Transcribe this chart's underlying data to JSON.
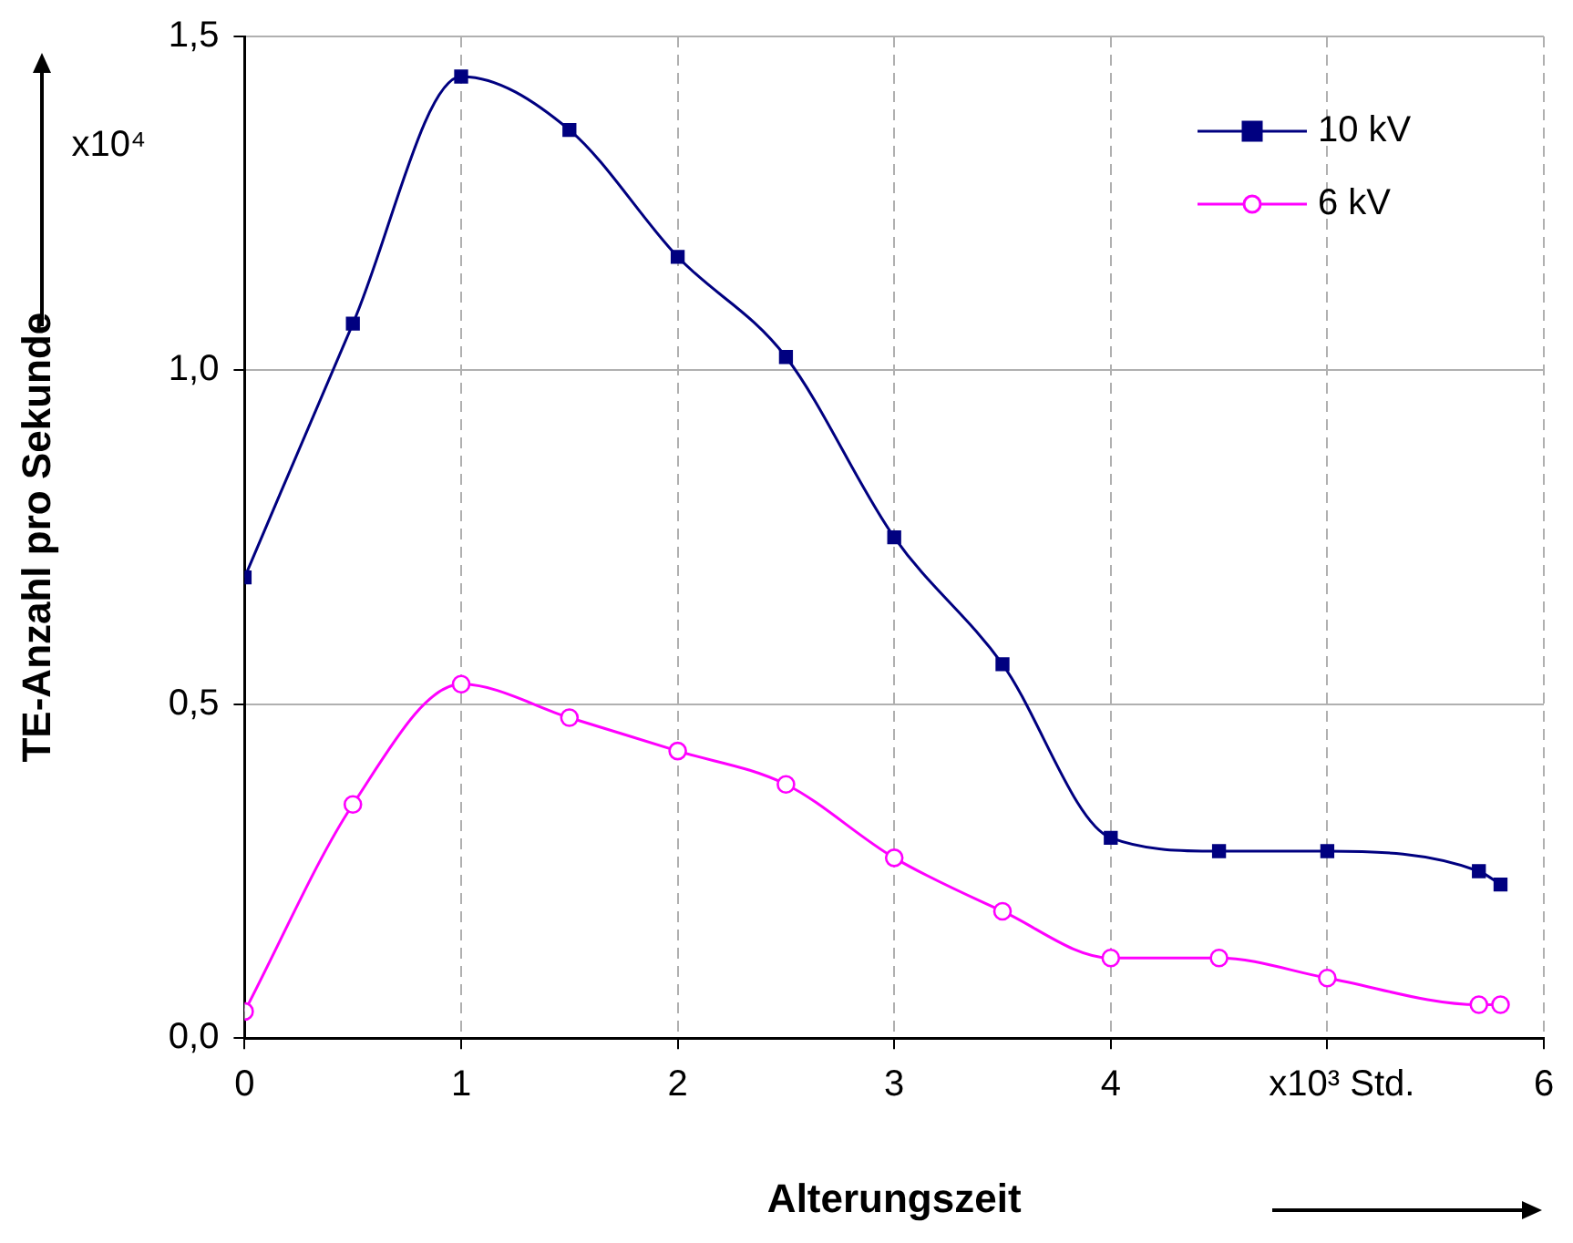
{
  "chart_data": {
    "type": "line",
    "ylabel": "TE-Anzahl pro Sekunde",
    "xlabel": "Alterungszeit",
    "x": [
      0,
      0.5,
      1,
      1.5,
      2,
      2.5,
      3,
      3.5,
      4,
      4.5,
      5,
      5.7,
      5.8
    ],
    "series": [
      {
        "name": "10 kV",
        "color": "#000080",
        "marker": "square",
        "values": [
          0.69,
          1.07,
          1.44,
          1.36,
          1.17,
          1.02,
          0.75,
          0.56,
          0.3,
          0.28,
          0.28,
          0.25,
          0.23
        ]
      },
      {
        "name": "6 kV",
        "color": "#ff00ff",
        "marker": "circle",
        "values": [
          0.04,
          0.35,
          0.53,
          0.48,
          0.43,
          0.38,
          0.27,
          0.19,
          0.12,
          0.12,
          0.09,
          0.05,
          0.05
        ]
      }
    ],
    "xlim": [
      0,
      6
    ],
    "xticks": [
      0,
      1,
      2,
      3,
      4,
      {
        "value": 5,
        "label": null
      },
      6
    ],
    "ylim": [
      0,
      1.5
    ],
    "yticks": [
      {
        "value": 0,
        "label": "0,0"
      },
      {
        "value": 0.5,
        "label": "0,5"
      },
      {
        "value": 1,
        "label": "1,0"
      },
      {
        "value": 1.5,
        "label": "1,5"
      }
    ],
    "annotations": [
      "x10⁴",
      "x10³ Std."
    ],
    "grid": true,
    "legend": "top right",
    "line_style": "solid"
  }
}
